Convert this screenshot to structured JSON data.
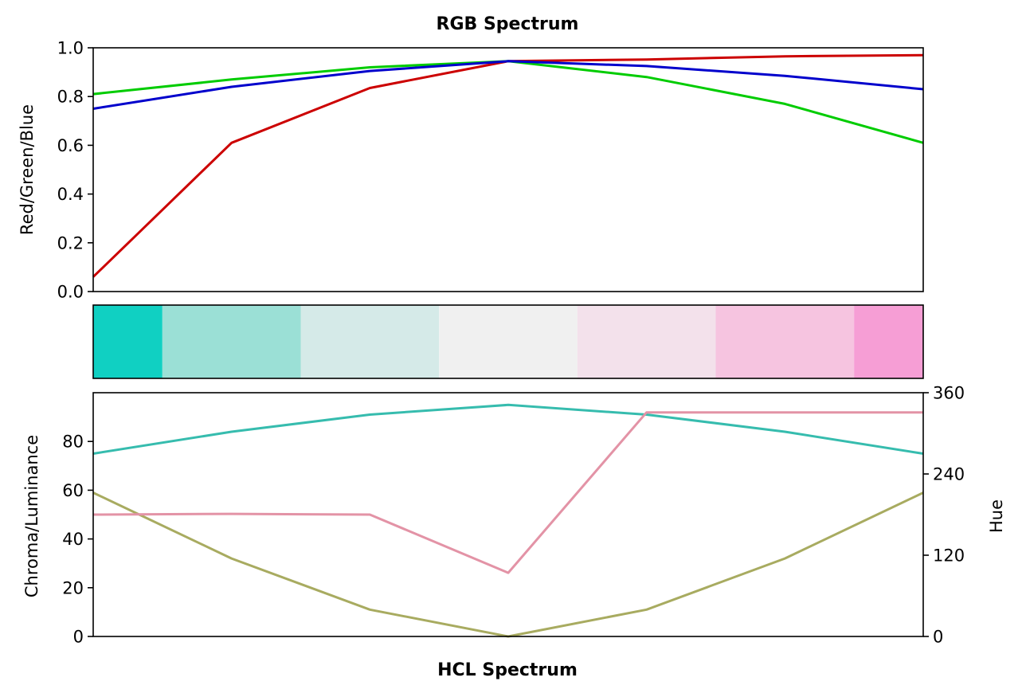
{
  "chart_data": [
    {
      "type": "line",
      "title": "RGB Spectrum",
      "xlabel": "",
      "ylabel": "Red/Green/Blue",
      "x": [
        1,
        2,
        3,
        4,
        5,
        6,
        7
      ],
      "xlim": [
        1,
        7
      ],
      "ylim": [
        0,
        1
      ],
      "yticks": [
        0.0,
        0.2,
        0.4,
        0.6,
        0.8,
        1.0
      ],
      "ytick_labels": [
        "0.0",
        "0.2",
        "0.4",
        "0.6",
        "0.8",
        "1.0"
      ],
      "grid": false,
      "series": [
        {
          "color": "#cc0000",
          "values": [
            0.06,
            0.61,
            0.835,
            0.945,
            0.952,
            0.965,
            0.97
          ]
        },
        {
          "color": "#00cc00",
          "values": [
            0.81,
            0.87,
            0.92,
            0.945,
            0.88,
            0.77,
            0.61
          ]
        },
        {
          "color": "#0000cc",
          "values": [
            0.75,
            0.84,
            0.905,
            0.945,
            0.925,
            0.885,
            0.83
          ]
        }
      ]
    },
    {
      "type": "heatmap",
      "swatches": [
        "#10d0c2",
        "#9be0d6",
        "#d5eae8",
        "#f0f0f0",
        "#f3e1eb",
        "#f6c4e0",
        "#f69ed5"
      ]
    },
    {
      "type": "line",
      "title": "",
      "xlabel": "HCL Spectrum",
      "ylabel": "Chroma/Luminance",
      "y2label": "Hue",
      "x": [
        1,
        2,
        3,
        4,
        5,
        6,
        7
      ],
      "xlim": [
        1,
        7
      ],
      "ylim": [
        0,
        100
      ],
      "yticks": [
        0,
        20,
        40,
        60,
        80
      ],
      "ytick_labels": [
        "0",
        "20",
        "40",
        "60",
        "80"
      ],
      "y2lim": [
        0,
        360
      ],
      "y2ticks": [
        0,
        120,
        240,
        360
      ],
      "y2tick_labels": [
        "0",
        "120",
        "240",
        "360"
      ],
      "grid": false,
      "series": [
        {
          "color": "#36bcae",
          "axis": "left",
          "values": [
            75,
            84,
            91,
            95,
            91,
            84,
            75
          ]
        },
        {
          "color": "#a8ab60",
          "axis": "left",
          "values": [
            59,
            32,
            11,
            0,
            11,
            32,
            59
          ]
        },
        {
          "color": "#e393a6",
          "axis": "right",
          "values": [
            180,
            181,
            180,
            94,
            331,
            331,
            331
          ]
        }
      ]
    }
  ]
}
